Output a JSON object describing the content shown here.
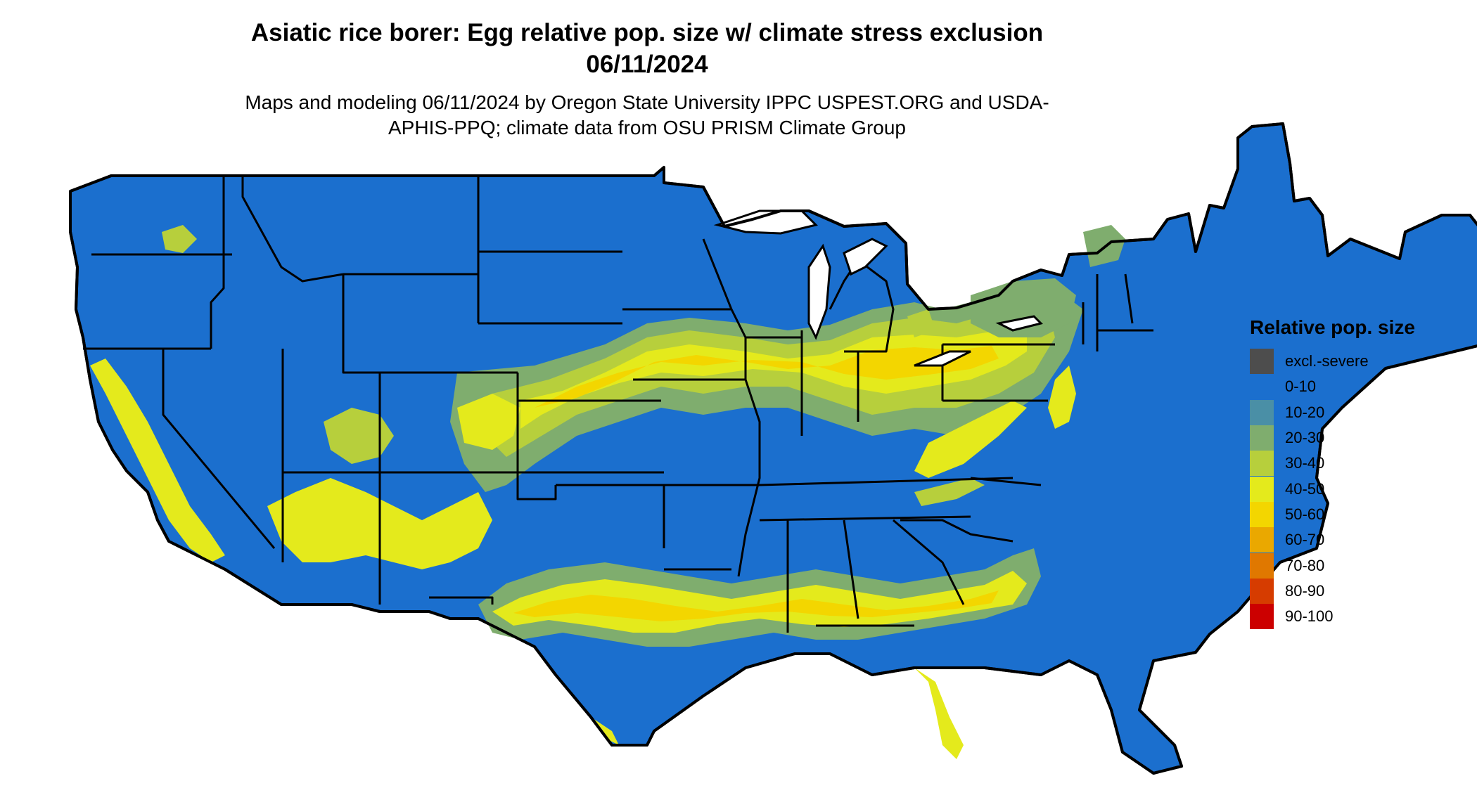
{
  "title": "Asiatic rice borer: Egg relative pop. size w/ climate stress exclusion 06/11/2024",
  "subtitle": "Maps and modeling 06/11/2024 by Oregon State University IPPC USPEST.ORG and USDA-APHIS-PPQ; climate data from OSU PRISM Climate Group",
  "legend": {
    "title": "Relative pop. size",
    "items": [
      {
        "label": "excl.-severe",
        "color": "#4d4d4d"
      },
      {
        "label": "0-10",
        "color": "#1b6fce"
      },
      {
        "label": "10-20",
        "color": "#4a8fa6"
      },
      {
        "label": "20-30",
        "color": "#7fad6e"
      },
      {
        "label": "30-40",
        "color": "#b7cf3c"
      },
      {
        "label": "40-50",
        "color": "#e4ea1c"
      },
      {
        "label": "50-60",
        "color": "#f3d600"
      },
      {
        "label": "60-70",
        "color": "#eaa800"
      },
      {
        "label": "70-80",
        "color": "#e07800"
      },
      {
        "label": "80-90",
        "color": "#d63c00"
      },
      {
        "label": "90-100",
        "color": "#cc0000"
      }
    ]
  }
}
